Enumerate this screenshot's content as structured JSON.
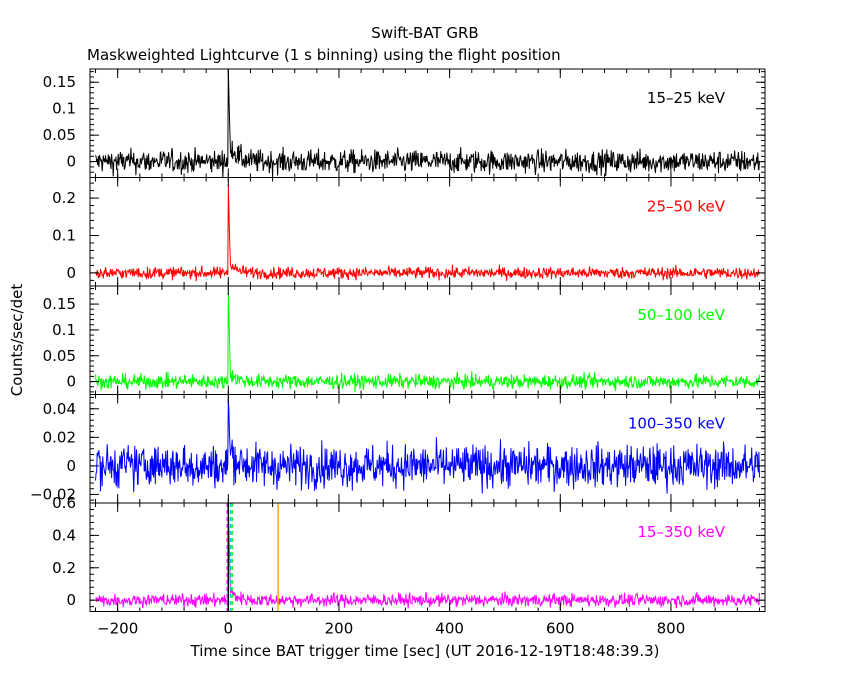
{
  "chart_data": {
    "type": "line",
    "title": "Swift-BAT GRB",
    "subtitle": "Maskweighted Lightcurve (1 s binning) using the flight position",
    "xlabel": "Time since BAT trigger time [sec] (UT 2016-12-19T18:48:39.3)",
    "ylabel": "Counts/sec/det",
    "xlim": [
      -250,
      970
    ],
    "xticks": [
      -200,
      0,
      200,
      400,
      600,
      800
    ],
    "xtick_labels": [
      "−200",
      "0",
      "200",
      "400",
      "600",
      "800"
    ],
    "grid": false,
    "panels": [
      {
        "name": "15–25 keV",
        "color": "#000000",
        "ylim": [
          -0.03,
          0.175
        ],
        "yticks": [
          0,
          0.05,
          0.1,
          0.15
        ],
        "ytick_labels": [
          "0",
          "0.05",
          "0.1",
          "0.15"
        ],
        "noise": 0.011,
        "peak": 0.165,
        "tail": 0.012
      },
      {
        "name": "25–50 keV",
        "color": "#ff0000",
        "ylim": [
          -0.035,
          0.255
        ],
        "yticks": [
          0,
          0.1,
          0.2
        ],
        "ytick_labels": [
          "0",
          "0.1",
          "0.2"
        ],
        "noise": 0.008,
        "peak": 0.235,
        "tail": 0.008
      },
      {
        "name": "50–100 keV",
        "color": "#00ff00",
        "ylim": [
          -0.025,
          0.185
        ],
        "yticks": [
          0,
          0.05,
          0.1,
          0.15
        ],
        "ytick_labels": [
          "0",
          "0.05",
          "0.1",
          "0.15"
        ],
        "noise": 0.007,
        "peak": 0.18,
        "tail": 0.005
      },
      {
        "name": "100–350 keV",
        "color": "#0000ff",
        "ylim": [
          -0.026,
          0.05
        ],
        "yticks": [
          -0.02,
          0,
          0.02,
          0.04
        ],
        "ytick_labels": [
          "−0.02",
          "0",
          "0.02",
          "0.04"
        ],
        "noise": 0.0075,
        "peak": 0.048,
        "tail": 0.004
      },
      {
        "name": "15–350 keV",
        "color": "#ff00ff",
        "ylim": [
          -0.07,
          0.6
        ],
        "yticks": [
          0,
          0.2,
          0.4,
          0.6
        ],
        "ytick_labels": [
          "0",
          "0.2",
          "0.4",
          "0.6"
        ],
        "noise": 0.02,
        "peak": 0.6,
        "tail": 0.02,
        "markers": [
          {
            "x": 0,
            "color": "#000000"
          },
          {
            "x": 4,
            "color": "#00c8c8"
          },
          {
            "x": 7,
            "color": "#00ff00"
          },
          {
            "x": -2,
            "color": "#ff00ff"
          },
          {
            "x": 90,
            "color": "#ffa500"
          }
        ]
      }
    ]
  }
}
